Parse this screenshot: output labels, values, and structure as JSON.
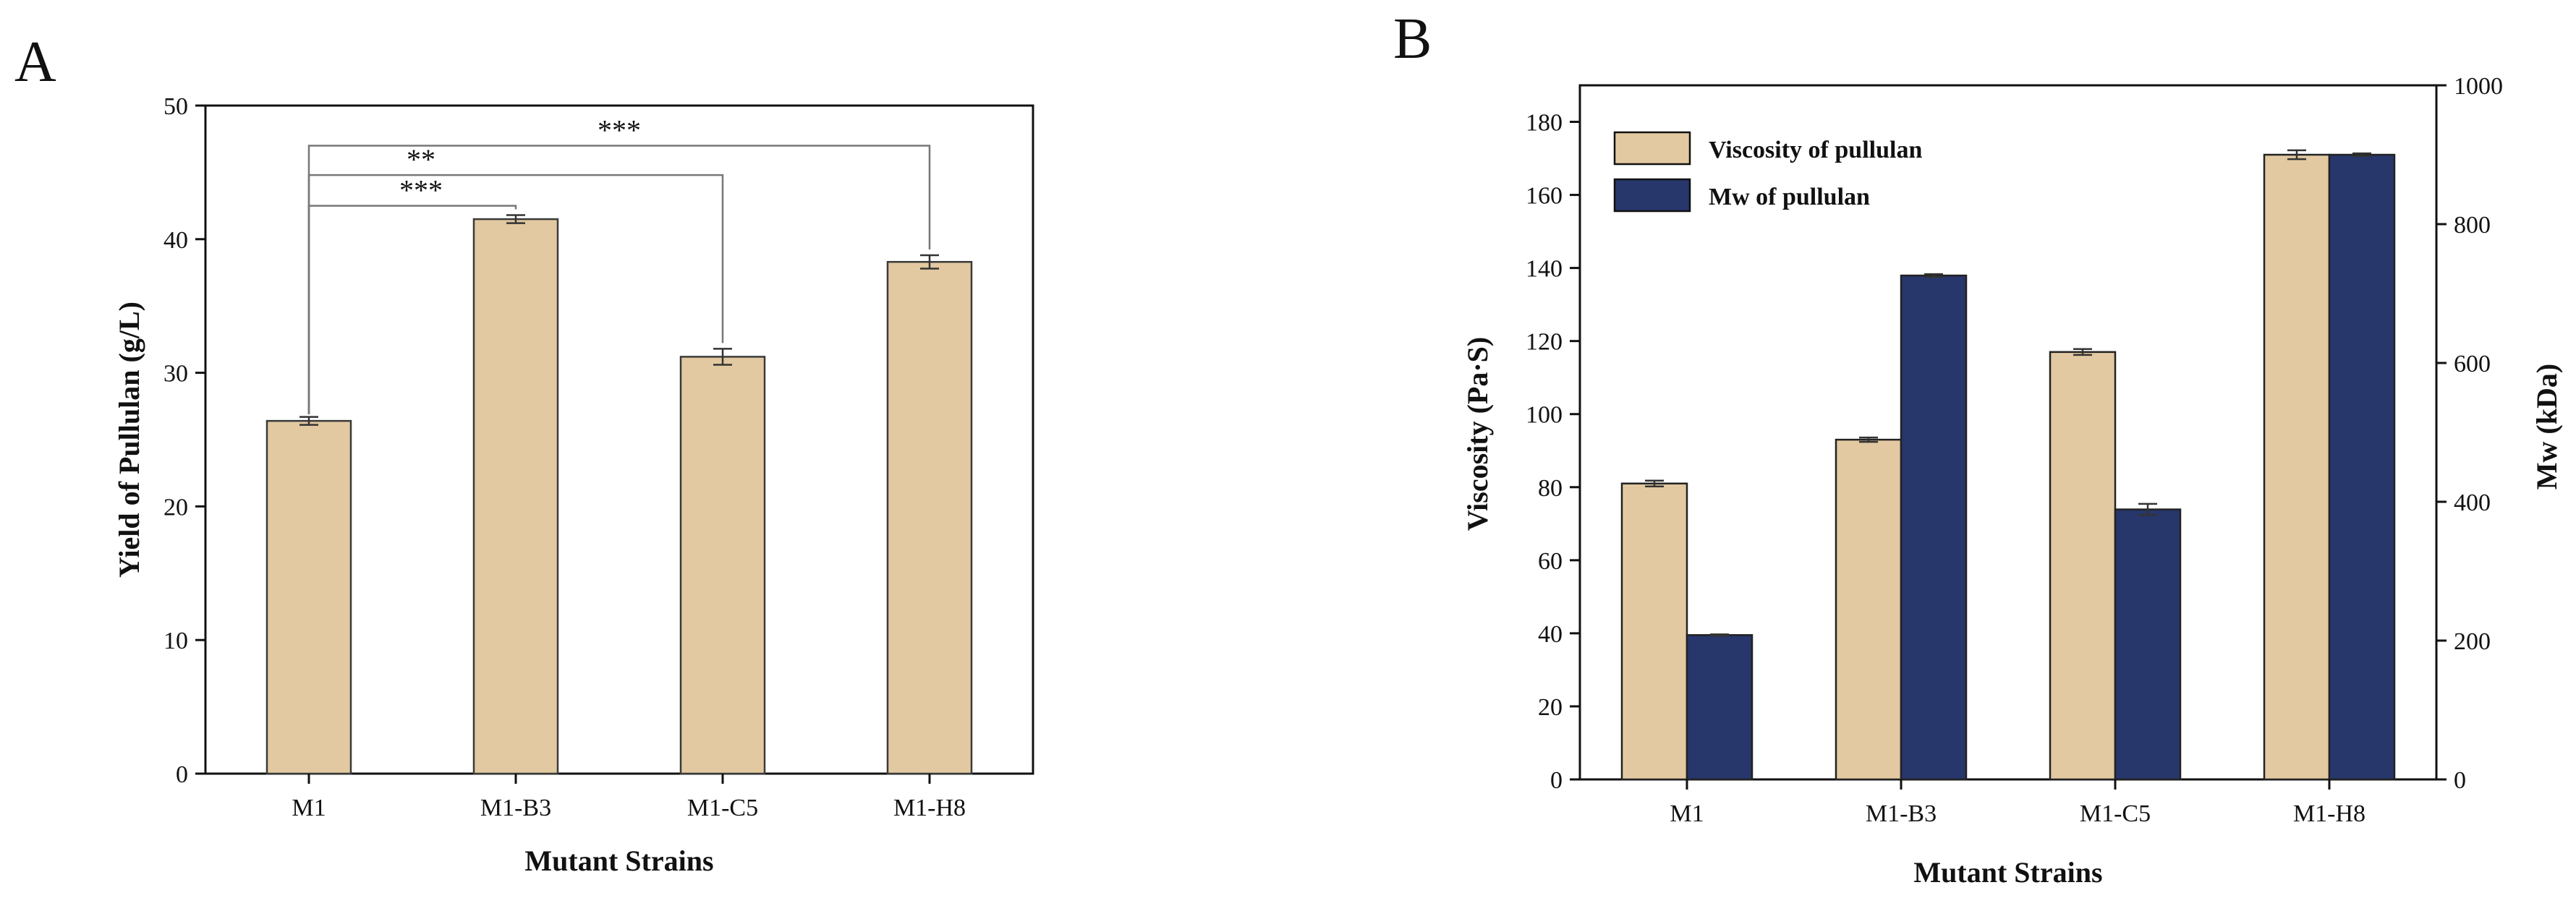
{
  "chart_data": [
    {
      "panel_label": "A",
      "type": "bar",
      "categories": [
        "M1",
        "M1-B3",
        "M1-C5",
        "M1-H8"
      ],
      "values": [
        26.4,
        41.5,
        31.2,
        38.3
      ],
      "errors": [
        0.3,
        0.3,
        0.6,
        0.5
      ],
      "color": "#e2c9a1",
      "xlabel": "Mutant Strains",
      "ylabel": "Yield of Pullulan (g/L)",
      "ylim": [
        0,
        50
      ],
      "yticks": [
        0,
        10,
        20,
        30,
        40,
        50
      ],
      "significance": [
        {
          "from": "M1",
          "to": "M1-B3",
          "label": "***"
        },
        {
          "from": "M1",
          "to": "M1-C5",
          "label": "**"
        },
        {
          "from": "M1",
          "to": "M1-H8",
          "label": "***"
        }
      ]
    },
    {
      "panel_label": "B",
      "type": "bar",
      "categories": [
        "M1",
        "M1-B3",
        "M1-C5",
        "M1-H8"
      ],
      "xlabel": "Mutant Strains",
      "ylabel_left": "Viscosity (Pa·S)",
      "ylabel_right": "Mw (kDa)",
      "ylim_left": [
        0,
        190
      ],
      "yticks_left": [
        0,
        20,
        40,
        60,
        80,
        100,
        120,
        140,
        160,
        180
      ],
      "ylim_right": [
        0,
        1000
      ],
      "yticks_right": [
        0,
        200,
        400,
        600,
        800,
        1000
      ],
      "legend_position": "top-left",
      "series": [
        {
          "name": "Viscosity of pullulan",
          "axis": "left",
          "color": "#e2c9a1",
          "values": [
            81,
            93,
            117,
            171
          ],
          "errors": [
            0.8,
            0.6,
            0.8,
            1.2
          ]
        },
        {
          "name": "Mw of pullulan",
          "axis": "right",
          "color": "#27366b",
          "values": [
            208,
            726,
            389,
            900
          ],
          "errors": [
            1,
            2,
            8,
            2
          ]
        }
      ]
    }
  ]
}
